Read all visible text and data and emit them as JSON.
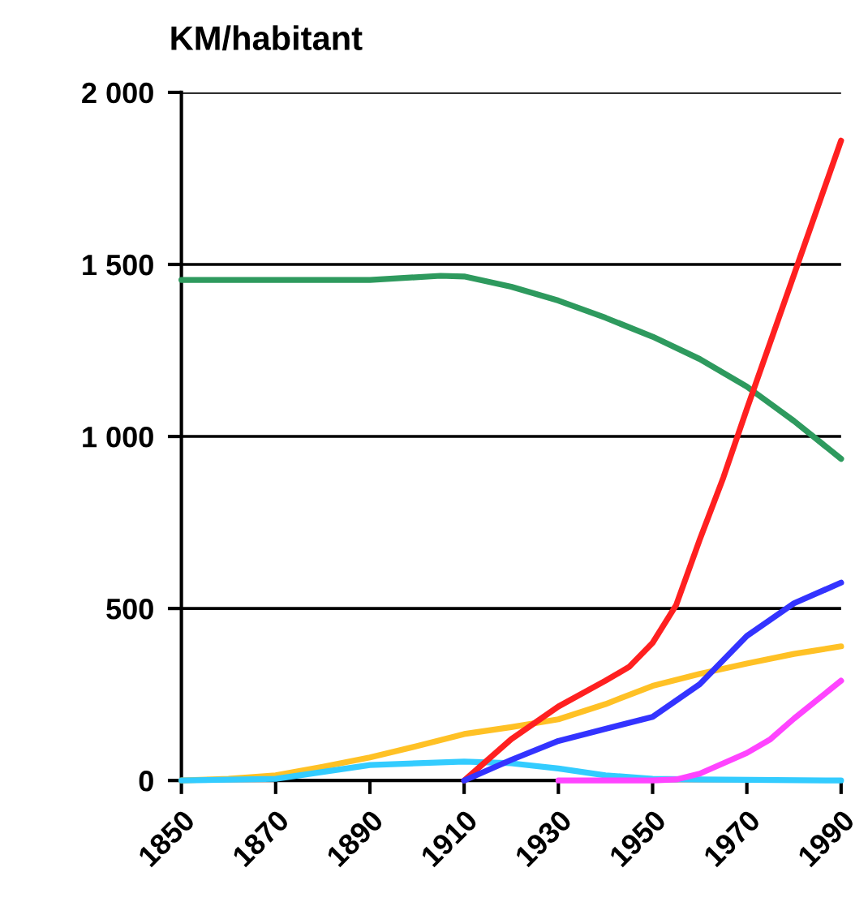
{
  "chart_data": {
    "type": "line",
    "title": "KM/habitant",
    "xlim": [
      1850,
      1990
    ],
    "xticks": [
      1850,
      1870,
      1890,
      1910,
      1930,
      1950,
      1970,
      1990
    ],
    "ylim": [
      0,
      2000
    ],
    "yticks": [
      {
        "value": 0,
        "label": "0"
      },
      {
        "value": 500,
        "label": "500"
      },
      {
        "value": 1000,
        "label": "1 000"
      },
      {
        "value": 1500,
        "label": "1 500"
      },
      {
        "value": 2000,
        "label": "2 000"
      }
    ],
    "grid": "y",
    "marker": "none",
    "line_style": "solid",
    "series": [
      {
        "color": "#2e9a5e",
        "x": [
          1850,
          1870,
          1890,
          1905,
          1910,
          1920,
          1930,
          1940,
          1950,
          1960,
          1970,
          1980,
          1990
        ],
        "values": [
          1455,
          1455,
          1455,
          1467,
          1465,
          1435,
          1395,
          1345,
          1290,
          1225,
          1145,
          1045,
          935
        ]
      },
      {
        "color": "#ffc125",
        "x": [
          1850,
          1860,
          1870,
          1880,
          1890,
          1900,
          1910,
          1920,
          1930,
          1940,
          1950,
          1960,
          1970,
          1980,
          1990
        ],
        "values": [
          0,
          5,
          15,
          40,
          67,
          100,
          135,
          155,
          178,
          222,
          275,
          310,
          340,
          368,
          390
        ]
      },
      {
        "color": "#33ccff",
        "x": [
          1850,
          1870,
          1890,
          1910,
          1920,
          1930,
          1940,
          1950,
          1960,
          1990
        ],
        "values": [
          0,
          5,
          45,
          55,
          50,
          35,
          15,
          5,
          3,
          0
        ]
      },
      {
        "color": "#ff2020",
        "x": [
          1910,
          1920,
          1930,
          1940,
          1945,
          1950,
          1955,
          1960,
          1965,
          1970,
          1980,
          1990
        ],
        "values": [
          0,
          120,
          215,
          290,
          330,
          400,
          510,
          700,
          880,
          1080,
          1470,
          1860
        ]
      },
      {
        "color": "#3333ff",
        "x": [
          1910,
          1920,
          1930,
          1940,
          1950,
          1960,
          1970,
          1980,
          1990
        ],
        "values": [
          0,
          60,
          115,
          150,
          185,
          280,
          420,
          515,
          575
        ]
      },
      {
        "color": "#ff44ff",
        "x": [
          1930,
          1940,
          1950,
          1955,
          1960,
          1965,
          1970,
          1975,
          1980,
          1985,
          1990
        ],
        "values": [
          0,
          0,
          0,
          3,
          20,
          50,
          80,
          120,
          180,
          235,
          290
        ]
      }
    ]
  }
}
